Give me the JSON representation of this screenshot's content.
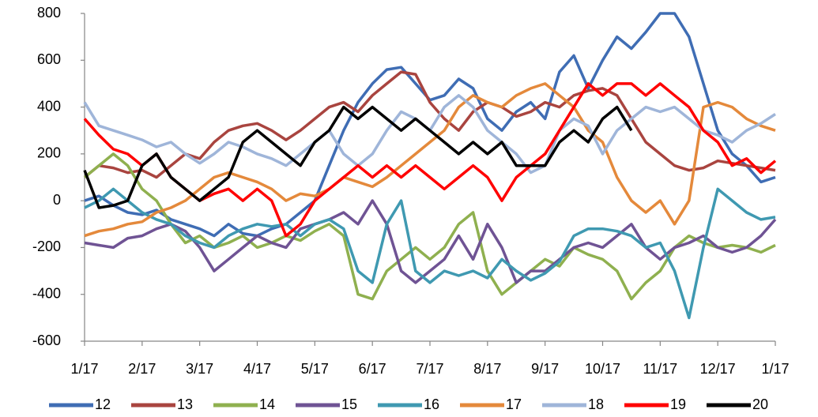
{
  "chart_data": {
    "type": "line",
    "categories": [
      "1/17",
      null,
      null,
      null,
      "2/17",
      null,
      null,
      null,
      "3/17",
      null,
      null,
      null,
      "4/17",
      null,
      null,
      null,
      "5/17",
      null,
      null,
      null,
      "6/17",
      null,
      null,
      null,
      "7/17",
      null,
      null,
      null,
      "8/17",
      null,
      null,
      null,
      "9/17",
      null,
      null,
      null,
      "10/17",
      null,
      null,
      null,
      "11/17",
      null,
      null,
      null,
      "12/17",
      null,
      null,
      null,
      "1/17"
    ],
    "ylim": [
      -600,
      800
    ],
    "yticks": [
      -600,
      -400,
      -200,
      0,
      200,
      400,
      600,
      800
    ],
    "legend": "bottom",
    "series": [
      {
        "name": "12",
        "color": "#3f6db4",
        "values": [
          0,
          20,
          -20,
          -50,
          -60,
          -40,
          -80,
          -100,
          -120,
          -150,
          -100,
          -140,
          -150,
          -120,
          -100,
          -50,
          0,
          150,
          300,
          420,
          500,
          560,
          570,
          500,
          430,
          450,
          520,
          480,
          350,
          300,
          380,
          420,
          350,
          550,
          620,
          480,
          600,
          700,
          650,
          720,
          800,
          800,
          700,
          500,
          300,
          200,
          150,
          80,
          100
        ]
      },
      {
        "name": "13",
        "color": "#a9443f",
        "values": [
          100,
          150,
          140,
          120,
          130,
          100,
          150,
          200,
          180,
          250,
          300,
          320,
          330,
          300,
          260,
          300,
          350,
          400,
          420,
          380,
          450,
          500,
          550,
          540,
          420,
          350,
          300,
          380,
          420,
          400,
          360,
          380,
          420,
          400,
          450,
          470,
          480,
          450,
          350,
          250,
          200,
          150,
          130,
          140,
          170,
          160,
          150,
          140,
          130
        ]
      },
      {
        "name": "14",
        "color": "#8fb04f",
        "values": [
          100,
          150,
          200,
          150,
          50,
          0,
          -100,
          -180,
          -150,
          -200,
          -180,
          -150,
          -200,
          -180,
          -150,
          -170,
          -130,
          -100,
          -150,
          -400,
          -420,
          -300,
          -250,
          -200,
          -250,
          -200,
          -100,
          -50,
          -300,
          -400,
          -350,
          -300,
          -250,
          -280,
          -200,
          -230,
          -250,
          -300,
          -420,
          -350,
          -300,
          -200,
          -150,
          -180,
          -200,
          -190,
          -200,
          -220,
          -190
        ]
      },
      {
        "name": "15",
        "color": "#6f5394",
        "values": [
          -180,
          -190,
          -200,
          -160,
          -150,
          -120,
          -100,
          -130,
          -200,
          -300,
          -250,
          -200,
          -150,
          -180,
          -200,
          -120,
          -100,
          -80,
          -50,
          -100,
          0,
          -100,
          -300,
          -350,
          -300,
          -250,
          -150,
          -250,
          -100,
          -200,
          -350,
          -300,
          -300,
          -250,
          -200,
          -180,
          -200,
          -150,
          -100,
          -200,
          -250,
          -200,
          -180,
          -150,
          -200,
          -220,
          -200,
          -150,
          -80
        ]
      },
      {
        "name": "16",
        "color": "#3f99b1",
        "values": [
          -30,
          0,
          50,
          0,
          -50,
          -80,
          -100,
          -150,
          -180,
          -200,
          -150,
          -120,
          -100,
          -110,
          -100,
          -150,
          -100,
          -80,
          -120,
          -300,
          -350,
          -100,
          0,
          -300,
          -350,
          -300,
          -320,
          -300,
          -330,
          -250,
          -300,
          -340,
          -310,
          -260,
          -150,
          -120,
          -120,
          -130,
          -150,
          -200,
          -180,
          -300,
          -500,
          -200,
          50,
          0,
          -50,
          -80,
          -70
        ]
      },
      {
        "name": "17",
        "color": "#e4893b",
        "values": [
          -150,
          -130,
          -120,
          -100,
          -90,
          -50,
          -30,
          0,
          50,
          100,
          120,
          100,
          80,
          50,
          0,
          30,
          20,
          50,
          100,
          80,
          60,
          100,
          150,
          200,
          250,
          300,
          400,
          450,
          420,
          400,
          450,
          480,
          500,
          450,
          400,
          300,
          250,
          100,
          0,
          -50,
          0,
          -100,
          0,
          400,
          420,
          400,
          350,
          320,
          300
        ]
      },
      {
        "name": "18",
        "color": "#9fb5d9",
        "values": [
          420,
          320,
          300,
          280,
          260,
          230,
          250,
          200,
          160,
          200,
          250,
          230,
          200,
          180,
          150,
          200,
          250,
          300,
          200,
          150,
          200,
          300,
          380,
          350,
          300,
          400,
          450,
          400,
          300,
          250,
          200,
          120,
          150,
          300,
          350,
          320,
          200,
          300,
          350,
          400,
          380,
          400,
          350,
          300,
          280,
          250,
          300,
          330,
          370
        ]
      },
      {
        "name": "19",
        "color": "#ff0000",
        "values": [
          350,
          280,
          220,
          200,
          150,
          200,
          100,
          50,
          0,
          30,
          50,
          0,
          50,
          0,
          -150,
          -100,
          0,
          50,
          100,
          150,
          100,
          150,
          100,
          150,
          100,
          50,
          100,
          150,
          100,
          0,
          100,
          150,
          200,
          300,
          400,
          500,
          450,
          500,
          500,
          450,
          500,
          450,
          400,
          300,
          250,
          150,
          180,
          120,
          170
        ]
      },
      {
        "name": "20",
        "color": "#000000",
        "values": [
          130,
          -30,
          -20,
          0,
          150,
          200,
          100,
          50,
          0,
          50,
          100,
          250,
          300,
          250,
          200,
          150,
          250,
          300,
          400,
          350,
          400,
          350,
          300,
          350,
          300,
          250,
          200,
          250,
          200,
          250,
          150,
          150,
          150,
          250,
          300,
          250,
          350,
          400,
          300,
          null,
          null,
          null,
          null,
          null,
          null,
          null,
          null,
          null,
          null
        ]
      }
    ]
  }
}
